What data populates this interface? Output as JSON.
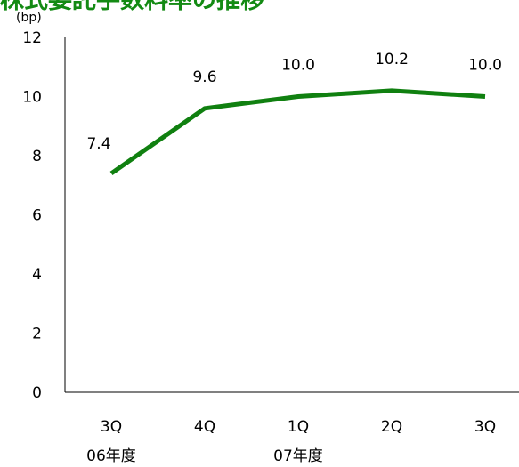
{
  "title": "株式委託手数料率の推移",
  "colors": {
    "line": "#108010",
    "title": "#138a13",
    "axis": "#000000"
  },
  "chart_data": {
    "type": "line",
    "title": "株式委託手数料率の推移",
    "ylabel": "(bp)",
    "xlabel": "",
    "ylim": [
      0,
      12
    ],
    "yticks": [
      0,
      2,
      4,
      6,
      8,
      10,
      12
    ],
    "grid": false,
    "categories": [
      "3Q",
      "4Q",
      "1Q",
      "2Q",
      "3Q"
    ],
    "year_labels": [
      "06年度",
      "07年度"
    ],
    "series": [
      {
        "values": [
          7.4,
          9.6,
          10.0,
          10.2,
          10.0
        ],
        "labels": [
          "7.4",
          "9.6",
          "10.0",
          "10.2",
          "10.0"
        ]
      }
    ]
  }
}
